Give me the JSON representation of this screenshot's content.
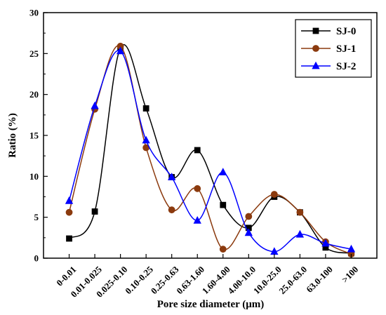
{
  "chart_data": {
    "type": "line",
    "xlabel": "Pore size diameter (μm)",
    "ylabel": "Ratio (%)",
    "ylim": [
      0,
      30
    ],
    "yticks": [
      "0",
      "5",
      "10",
      "15",
      "20",
      "25",
      "30"
    ],
    "categories": [
      "0-0.01",
      "0.01-0.025",
      "0.025-0.10",
      "0.10-0.25",
      "0.25-0.63",
      "0.63-1.60",
      "1.60-4.00",
      "4.00-10.0",
      "10.0-25.0",
      "25.0-63.0",
      "63.0-100",
      ">100"
    ],
    "grid": false,
    "legend_position": "top-right",
    "series": [
      {
        "name": "SJ-0",
        "color": "#000000",
        "marker": "square",
        "values": [
          2.4,
          5.7,
          25.7,
          18.3,
          9.9,
          13.2,
          6.5,
          3.7,
          7.5,
          5.6,
          1.3,
          0.6
        ]
      },
      {
        "name": "SJ-1",
        "color": "#8B3A0E",
        "marker": "circle",
        "values": [
          5.6,
          18.2,
          25.9,
          13.5,
          5.9,
          8.5,
          1.1,
          5.1,
          7.8,
          5.6,
          2.0,
          0.5
        ]
      },
      {
        "name": "SJ-2",
        "color": "#0000FF",
        "marker": "triangle",
        "values": [
          7.0,
          18.6,
          25.3,
          14.4,
          9.9,
          4.6,
          10.5,
          3.1,
          0.8,
          2.9,
          1.8,
          1.1
        ]
      }
    ]
  }
}
